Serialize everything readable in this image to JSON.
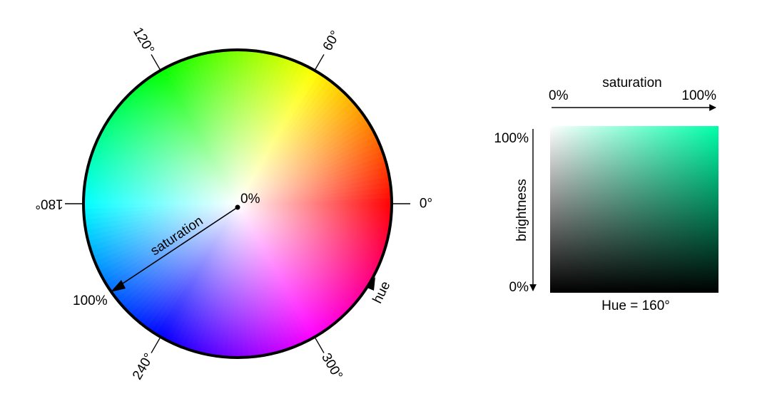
{
  "wheel": {
    "hue_ticks": [
      {
        "deg": 0,
        "label": "0°"
      },
      {
        "deg": 60,
        "label": "60°"
      },
      {
        "deg": 120,
        "label": "120°"
      },
      {
        "deg": 180,
        "label": "180°"
      },
      {
        "deg": 240,
        "label": "240°"
      },
      {
        "deg": 300,
        "label": "300°"
      }
    ],
    "center_label": "0%",
    "saturation_label": "saturation",
    "saturation_end_label": "100%",
    "hue_label": "hue"
  },
  "square": {
    "hue_deg": 160,
    "saturation_axis_label": "saturation",
    "sat_min_label": "0%",
    "sat_max_label": "100%",
    "brightness_axis_label": "brightness",
    "bright_max_label": "100%",
    "bright_min_label": "0%",
    "caption": "Hue = 160°"
  }
}
